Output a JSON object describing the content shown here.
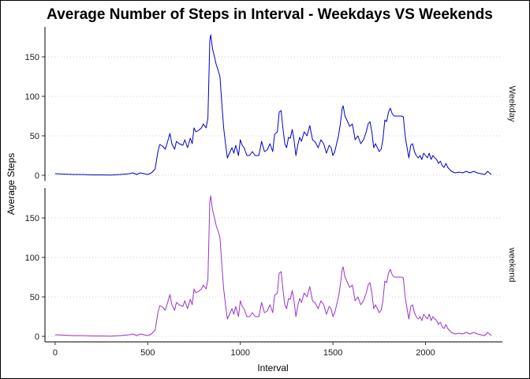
{
  "chart_data": {
    "type": "line",
    "title": "Average Number of Steps in Interval - Weekdays VS Weekends",
    "xlabel": "Interval",
    "ylabel": "Average Steps",
    "xlim": [
      -55,
      2415
    ],
    "ylim": [
      -7,
      188
    ],
    "x_ticks": [
      0,
      500,
      1000,
      1500,
      2000
    ],
    "y_ticks": [
      0,
      50,
      100,
      150
    ],
    "grid": "horizontal dotted",
    "panels": [
      {
        "label": "Weekday",
        "color": "#0000cc",
        "points": [
          [
            0,
            2
          ],
          [
            50,
            1.5
          ],
          [
            100,
            1
          ],
          [
            150,
            1
          ],
          [
            200,
            0.5
          ],
          [
            250,
            0.5
          ],
          [
            300,
            0.3
          ],
          [
            350,
            1
          ],
          [
            400,
            2
          ],
          [
            420,
            3
          ],
          [
            440,
            1
          ],
          [
            460,
            3
          ],
          [
            480,
            2
          ],
          [
            500,
            1
          ],
          [
            520,
            3
          ],
          [
            540,
            8
          ],
          [
            555,
            30
          ],
          [
            565,
            39
          ],
          [
            580,
            37
          ],
          [
            595,
            33
          ],
          [
            610,
            45
          ],
          [
            620,
            53
          ],
          [
            630,
            40
          ],
          [
            645,
            33
          ],
          [
            655,
            43
          ],
          [
            670,
            40
          ],
          [
            690,
            38
          ],
          [
            700,
            45
          ],
          [
            715,
            35
          ],
          [
            730,
            47
          ],
          [
            740,
            40
          ],
          [
            750,
            60
          ],
          [
            760,
            55
          ],
          [
            775,
            57
          ],
          [
            790,
            60
          ],
          [
            800,
            65
          ],
          [
            815,
            60
          ],
          [
            825,
            72
          ],
          [
            835,
            170
          ],
          [
            840,
            178
          ],
          [
            850,
            160
          ],
          [
            860,
            150
          ],
          [
            870,
            140
          ],
          [
            880,
            133
          ],
          [
            890,
            125
          ],
          [
            900,
            90
          ],
          [
            910,
            60
          ],
          [
            920,
            40
          ],
          [
            930,
            22
          ],
          [
            945,
            30
          ],
          [
            955,
            35
          ],
          [
            965,
            28
          ],
          [
            975,
            38
          ],
          [
            990,
            25
          ],
          [
            1000,
            45
          ],
          [
            1010,
            38
          ],
          [
            1020,
            35
          ],
          [
            1035,
            25
          ],
          [
            1050,
            25
          ],
          [
            1065,
            30
          ],
          [
            1080,
            25
          ],
          [
            1100,
            25
          ],
          [
            1115,
            43
          ],
          [
            1130,
            30
          ],
          [
            1145,
            32
          ],
          [
            1160,
            40
          ],
          [
            1175,
            30
          ],
          [
            1185,
            52
          ],
          [
            1200,
            55
          ],
          [
            1210,
            80
          ],
          [
            1220,
            82
          ],
          [
            1230,
            60
          ],
          [
            1240,
            40
          ],
          [
            1250,
            35
          ],
          [
            1260,
            48
          ],
          [
            1270,
            47
          ],
          [
            1280,
            58
          ],
          [
            1290,
            45
          ],
          [
            1300,
            25
          ],
          [
            1310,
            38
          ],
          [
            1320,
            48
          ],
          [
            1330,
            43
          ],
          [
            1345,
            55
          ],
          [
            1360,
            50
          ],
          [
            1375,
            63
          ],
          [
            1390,
            45
          ],
          [
            1405,
            42
          ],
          [
            1420,
            35
          ],
          [
            1435,
            45
          ],
          [
            1450,
            40
          ],
          [
            1465,
            28
          ],
          [
            1480,
            38
          ],
          [
            1490,
            35
          ],
          [
            1500,
            25
          ],
          [
            1510,
            30
          ],
          [
            1520,
            40
          ],
          [
            1530,
            50
          ],
          [
            1540,
            65
          ],
          [
            1550,
            85
          ],
          [
            1555,
            88
          ],
          [
            1565,
            75
          ],
          [
            1575,
            70
          ],
          [
            1590,
            62
          ],
          [
            1605,
            65
          ],
          [
            1620,
            45
          ],
          [
            1635,
            50
          ],
          [
            1650,
            40
          ],
          [
            1665,
            45
          ],
          [
            1680,
            55
          ],
          [
            1690,
            65
          ],
          [
            1700,
            68
          ],
          [
            1710,
            55
          ],
          [
            1720,
            35
          ],
          [
            1730,
            40
          ],
          [
            1740,
            35
          ],
          [
            1750,
            30
          ],
          [
            1760,
            33
          ],
          [
            1770,
            45
          ],
          [
            1780,
            70
          ],
          [
            1790,
            68
          ],
          [
            1800,
            80
          ],
          [
            1810,
            85
          ],
          [
            1820,
            78
          ],
          [
            1830,
            75
          ],
          [
            1850,
            75
          ],
          [
            1870,
            75
          ],
          [
            1880,
            74
          ],
          [
            1890,
            50
          ],
          [
            1900,
            35
          ],
          [
            1910,
            22
          ],
          [
            1920,
            38
          ],
          [
            1930,
            40
          ],
          [
            1940,
            30
          ],
          [
            1950,
            25
          ],
          [
            1960,
            22
          ],
          [
            1970,
            25
          ],
          [
            1980,
            20
          ],
          [
            1990,
            28
          ],
          [
            2000,
            25
          ],
          [
            2010,
            22
          ],
          [
            2020,
            28
          ],
          [
            2030,
            20
          ],
          [
            2040,
            25
          ],
          [
            2050,
            22
          ],
          [
            2060,
            20
          ],
          [
            2070,
            15
          ],
          [
            2080,
            18
          ],
          [
            2090,
            12
          ],
          [
            2100,
            10
          ],
          [
            2110,
            15
          ],
          [
            2120,
            10
          ],
          [
            2140,
            5
          ],
          [
            2160,
            3
          ],
          [
            2180,
            4
          ],
          [
            2200,
            3
          ],
          [
            2220,
            5
          ],
          [
            2240,
            3
          ],
          [
            2260,
            5
          ],
          [
            2280,
            3
          ],
          [
            2300,
            2
          ],
          [
            2320,
            1
          ],
          [
            2335,
            5
          ],
          [
            2355,
            1
          ]
        ]
      },
      {
        "label": "weekend",
        "color": "#9933cc",
        "points": [
          [
            0,
            2
          ],
          [
            50,
            1.5
          ],
          [
            100,
            1
          ],
          [
            150,
            1
          ],
          [
            200,
            0.5
          ],
          [
            250,
            0.5
          ],
          [
            300,
            0.3
          ],
          [
            350,
            1
          ],
          [
            400,
            2
          ],
          [
            420,
            3
          ],
          [
            440,
            1
          ],
          [
            460,
            3
          ],
          [
            480,
            2
          ],
          [
            500,
            1
          ],
          [
            520,
            3
          ],
          [
            540,
            8
          ],
          [
            555,
            30
          ],
          [
            565,
            39
          ],
          [
            580,
            37
          ],
          [
            595,
            33
          ],
          [
            610,
            45
          ],
          [
            620,
            53
          ],
          [
            630,
            40
          ],
          [
            645,
            33
          ],
          [
            655,
            43
          ],
          [
            670,
            40
          ],
          [
            690,
            38
          ],
          [
            700,
            45
          ],
          [
            715,
            35
          ],
          [
            730,
            47
          ],
          [
            740,
            40
          ],
          [
            750,
            60
          ],
          [
            760,
            55
          ],
          [
            775,
            57
          ],
          [
            790,
            60
          ],
          [
            800,
            65
          ],
          [
            815,
            60
          ],
          [
            825,
            72
          ],
          [
            835,
            170
          ],
          [
            840,
            178
          ],
          [
            850,
            160
          ],
          [
            860,
            150
          ],
          [
            870,
            140
          ],
          [
            880,
            133
          ],
          [
            890,
            125
          ],
          [
            900,
            90
          ],
          [
            910,
            60
          ],
          [
            920,
            40
          ],
          [
            930,
            22
          ],
          [
            945,
            30
          ],
          [
            955,
            35
          ],
          [
            965,
            28
          ],
          [
            975,
            38
          ],
          [
            990,
            25
          ],
          [
            1000,
            45
          ],
          [
            1010,
            38
          ],
          [
            1020,
            35
          ],
          [
            1035,
            25
          ],
          [
            1050,
            25
          ],
          [
            1065,
            30
          ],
          [
            1080,
            25
          ],
          [
            1100,
            25
          ],
          [
            1115,
            43
          ],
          [
            1130,
            30
          ],
          [
            1145,
            32
          ],
          [
            1160,
            40
          ],
          [
            1175,
            30
          ],
          [
            1185,
            52
          ],
          [
            1200,
            55
          ],
          [
            1210,
            80
          ],
          [
            1220,
            82
          ],
          [
            1230,
            60
          ],
          [
            1240,
            40
          ],
          [
            1250,
            35
          ],
          [
            1260,
            48
          ],
          [
            1270,
            47
          ],
          [
            1280,
            58
          ],
          [
            1290,
            45
          ],
          [
            1300,
            25
          ],
          [
            1310,
            38
          ],
          [
            1320,
            48
          ],
          [
            1330,
            43
          ],
          [
            1345,
            55
          ],
          [
            1360,
            50
          ],
          [
            1375,
            63
          ],
          [
            1390,
            45
          ],
          [
            1405,
            42
          ],
          [
            1420,
            35
          ],
          [
            1435,
            45
          ],
          [
            1450,
            40
          ],
          [
            1465,
            28
          ],
          [
            1480,
            38
          ],
          [
            1490,
            35
          ],
          [
            1500,
            25
          ],
          [
            1510,
            30
          ],
          [
            1520,
            40
          ],
          [
            1530,
            50
          ],
          [
            1540,
            65
          ],
          [
            1550,
            85
          ],
          [
            1555,
            88
          ],
          [
            1565,
            75
          ],
          [
            1575,
            70
          ],
          [
            1590,
            62
          ],
          [
            1605,
            65
          ],
          [
            1620,
            45
          ],
          [
            1635,
            50
          ],
          [
            1650,
            40
          ],
          [
            1665,
            45
          ],
          [
            1680,
            55
          ],
          [
            1690,
            65
          ],
          [
            1700,
            68
          ],
          [
            1710,
            55
          ],
          [
            1720,
            35
          ],
          [
            1730,
            40
          ],
          [
            1740,
            35
          ],
          [
            1750,
            30
          ],
          [
            1760,
            33
          ],
          [
            1770,
            45
          ],
          [
            1780,
            70
          ],
          [
            1790,
            68
          ],
          [
            1800,
            80
          ],
          [
            1810,
            85
          ],
          [
            1820,
            78
          ],
          [
            1830,
            75
          ],
          [
            1850,
            75
          ],
          [
            1870,
            75
          ],
          [
            1880,
            74
          ],
          [
            1890,
            50
          ],
          [
            1900,
            35
          ],
          [
            1910,
            22
          ],
          [
            1920,
            38
          ],
          [
            1930,
            40
          ],
          [
            1940,
            30
          ],
          [
            1950,
            25
          ],
          [
            1960,
            22
          ],
          [
            1970,
            25
          ],
          [
            1980,
            20
          ],
          [
            1990,
            28
          ],
          [
            2000,
            25
          ],
          [
            2010,
            22
          ],
          [
            2020,
            28
          ],
          [
            2030,
            20
          ],
          [
            2040,
            25
          ],
          [
            2050,
            22
          ],
          [
            2060,
            20
          ],
          [
            2070,
            15
          ],
          [
            2080,
            18
          ],
          [
            2090,
            12
          ],
          [
            2100,
            10
          ],
          [
            2110,
            15
          ],
          [
            2120,
            10
          ],
          [
            2140,
            5
          ],
          [
            2160,
            3
          ],
          [
            2180,
            4
          ],
          [
            2200,
            3
          ],
          [
            2220,
            5
          ],
          [
            2240,
            3
          ],
          [
            2260,
            5
          ],
          [
            2280,
            3
          ],
          [
            2300,
            2
          ],
          [
            2320,
            1
          ],
          [
            2335,
            5
          ],
          [
            2355,
            1
          ]
        ]
      }
    ]
  }
}
